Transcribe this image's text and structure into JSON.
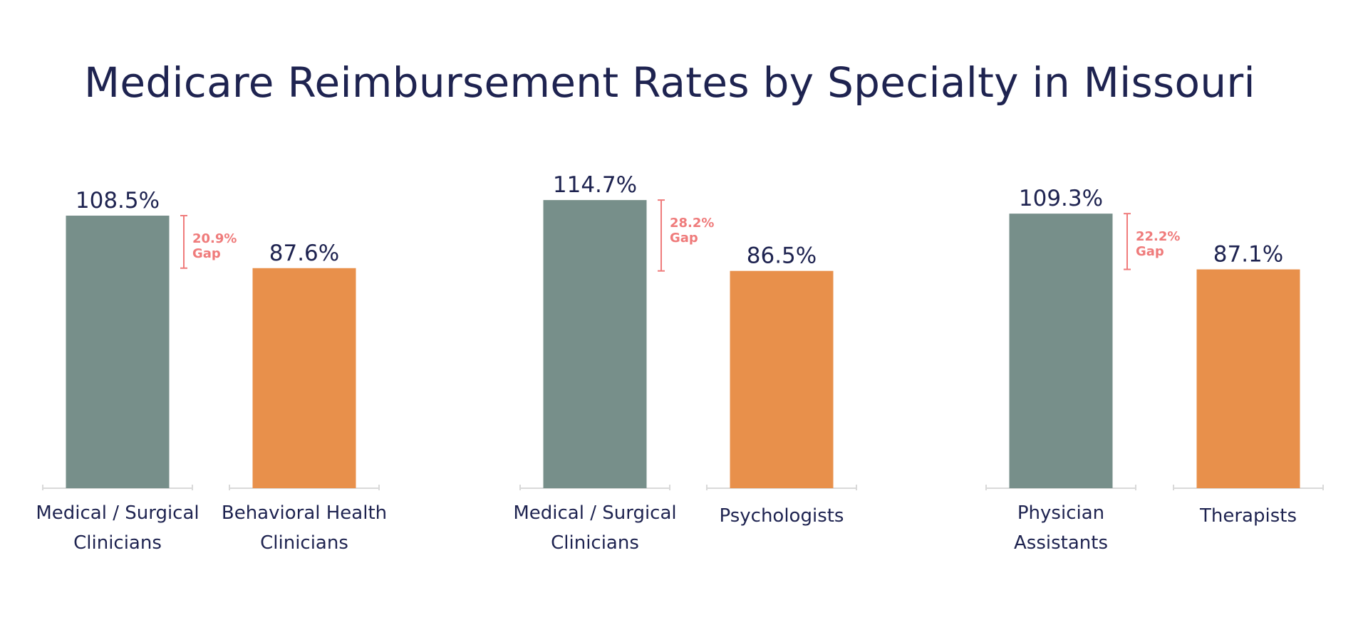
{
  "chart_data": {
    "type": "bar",
    "title": "Medicare Reimbursement Rates by Specialty in Missouri",
    "ylim": [
      0,
      120
    ],
    "colors": {
      "medical": "#778f8a",
      "behavioral": "#e8904b",
      "gap": "#ef7b7b",
      "text": "#1e2350",
      "axis": "#d9d9d9"
    },
    "groups": [
      {
        "bars": [
          {
            "label_lines": [
              "Medical / Surgical",
              "Clinicians"
            ],
            "value": 108.5,
            "value_label": "108.5%",
            "kind": "medical"
          },
          {
            "label_lines": [
              "Behavioral Health",
              "Clinicians"
            ],
            "value": 87.6,
            "value_label": "87.6%",
            "kind": "behavioral"
          }
        ],
        "gap": {
          "value": 20.9,
          "label_lines": [
            "20.9%",
            "Gap"
          ]
        }
      },
      {
        "bars": [
          {
            "label_lines": [
              "Medical / Surgical",
              "Clinicians"
            ],
            "value": 114.7,
            "value_label": "114.7%",
            "kind": "medical"
          },
          {
            "label_lines": [
              "Psychologists"
            ],
            "value": 86.5,
            "value_label": "86.5%",
            "kind": "behavioral"
          }
        ],
        "gap": {
          "value": 28.2,
          "label_lines": [
            "28.2%",
            "Gap"
          ]
        }
      },
      {
        "bars": [
          {
            "label_lines": [
              "Physician",
              "Assistants"
            ],
            "value": 109.3,
            "value_label": "109.3%",
            "kind": "medical"
          },
          {
            "label_lines": [
              "Therapists"
            ],
            "value": 87.1,
            "value_label": "87.1%",
            "kind": "behavioral"
          }
        ],
        "gap": {
          "value": 22.2,
          "label_lines": [
            "22.2%",
            "Gap"
          ]
        }
      }
    ]
  }
}
